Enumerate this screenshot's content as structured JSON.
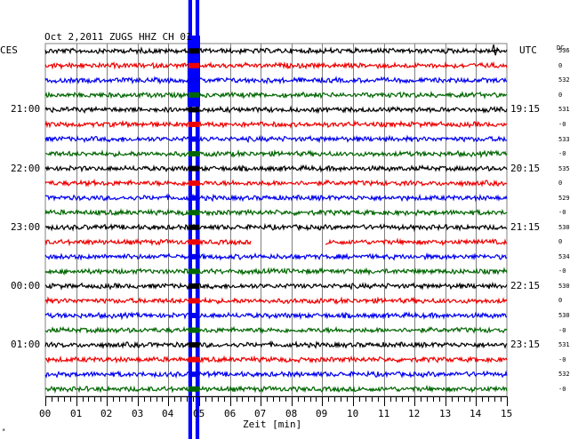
{
  "title": "Oct 2,2011  ZUGS HHZ  CH 01",
  "left_timezone": "CES",
  "right_timezone": "UTC",
  "dc_header": "DC",
  "footer_mark": "*",
  "colors": {
    "trace_cycle": [
      "#000000",
      "#ee0000",
      "#0000ee",
      "#006600"
    ],
    "event": "#0000ff",
    "grid": "#808080"
  },
  "chart_data": {
    "type": "helicorder",
    "title": "Oct 2,2011  ZUGS HHZ  CH 01",
    "xlabel": "Zeit [min]",
    "x_ticks": [
      "00",
      "01",
      "02",
      "03",
      "04",
      "05",
      "06",
      "07",
      "08",
      "09",
      "10",
      "11",
      "12",
      "13",
      "14",
      "15"
    ],
    "xlim": [
      0,
      15
    ],
    "n_traces": 24,
    "row_duration_min": 15,
    "left_time_labels": [
      {
        "row": 4,
        "text": "21:00"
      },
      {
        "row": 8,
        "text": "22:00"
      },
      {
        "row": 12,
        "text": "23:00"
      },
      {
        "row": 16,
        "text": "00:00"
      },
      {
        "row": 20,
        "text": "01:00"
      }
    ],
    "right_time_labels": [
      {
        "row": 4,
        "text": "19:15"
      },
      {
        "row": 8,
        "text": "20:15"
      },
      {
        "row": 12,
        "text": "21:15"
      },
      {
        "row": 16,
        "text": "22:15"
      },
      {
        "row": 20,
        "text": "23:15"
      }
    ],
    "dc_offsets": [
      "536",
      "0",
      "532",
      "0",
      "531",
      "-0",
      "533",
      "-0",
      "535",
      "0",
      "529",
      "-0",
      "530",
      "0",
      "534",
      "-0",
      "530",
      "0",
      "530",
      "-0",
      "531",
      "-0",
      "532",
      "-0"
    ],
    "event": {
      "start_min": 4.65,
      "end_min": 5.0,
      "rows": "all"
    },
    "data_gaps": [
      {
        "row": 13,
        "start_min": 6.7,
        "end_min": 9.1
      }
    ],
    "spike": {
      "row": 0,
      "minute": 14.6
    }
  }
}
